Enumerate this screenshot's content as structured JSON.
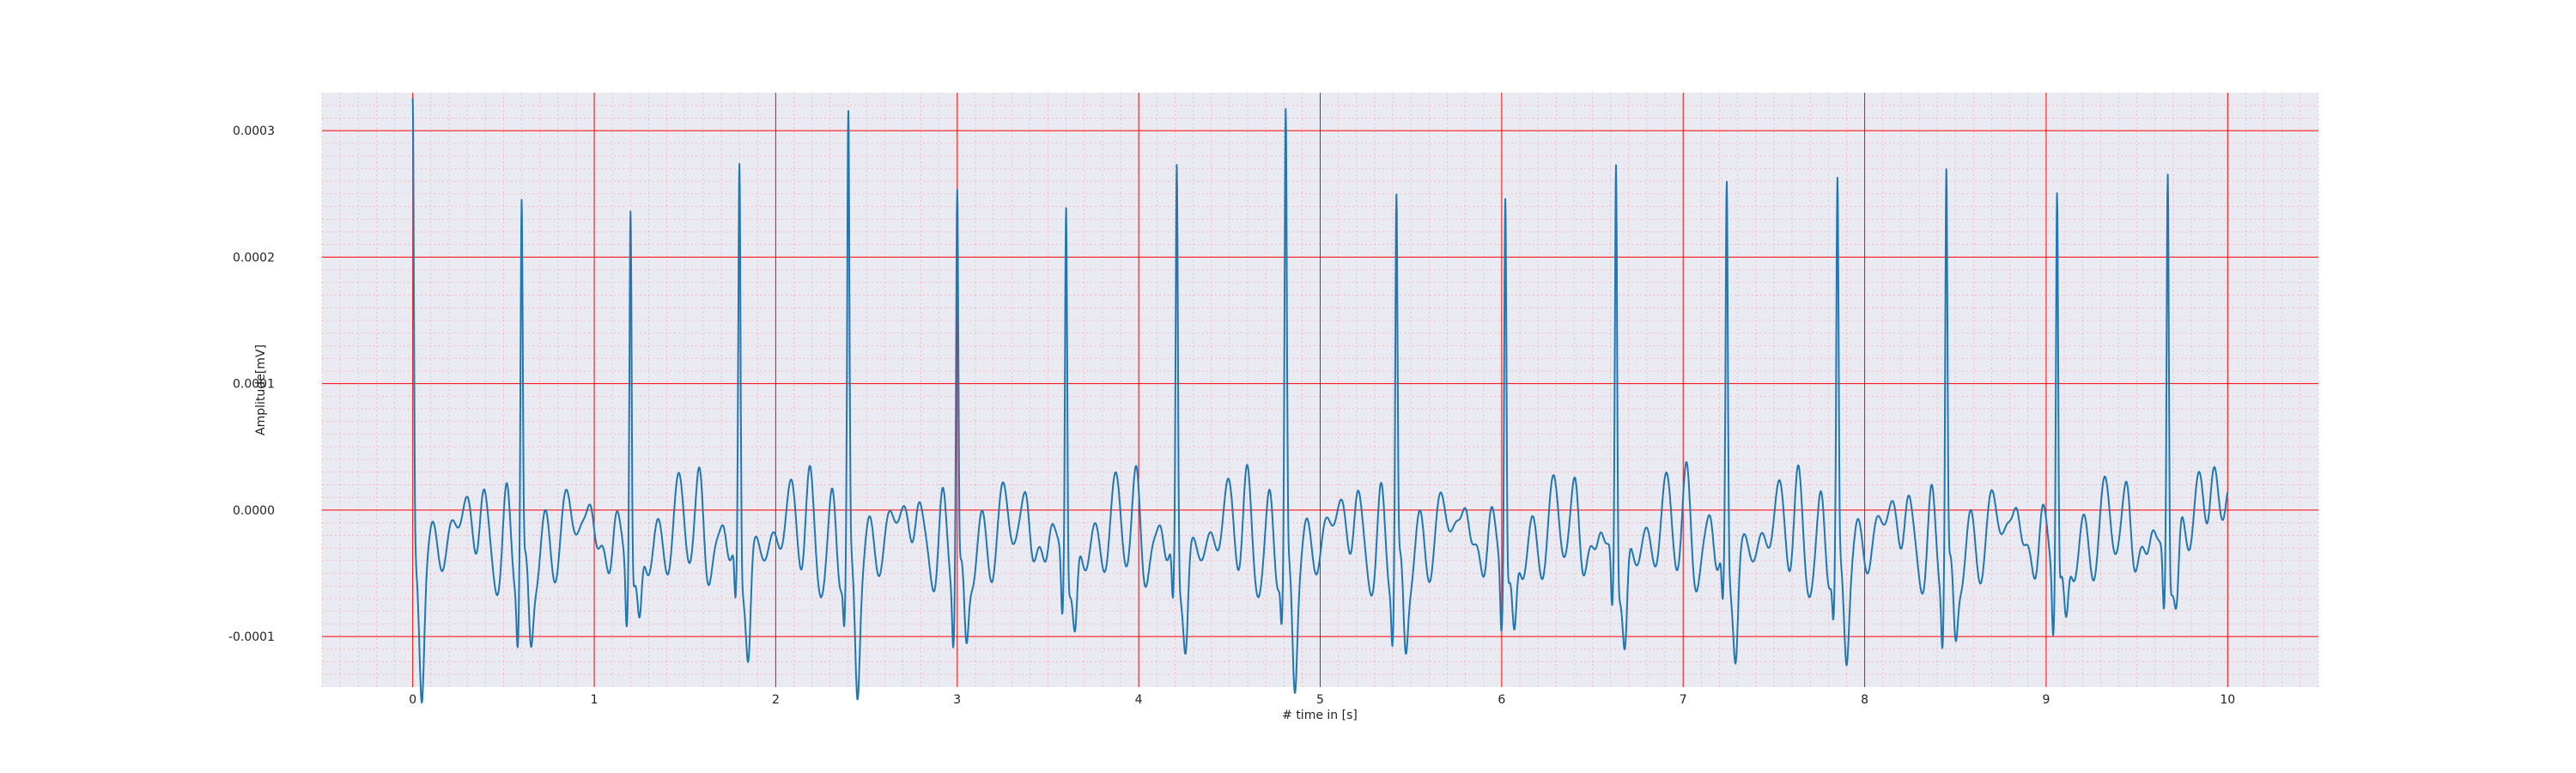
{
  "chart_data": {
    "type": "line",
    "title": "",
    "xlabel": "# time in [s]",
    "ylabel": "Amplitude[mV]",
    "xlim": [
      -0.5,
      10.5
    ],
    "ylim": [
      -0.00014,
      0.00033
    ],
    "xticks": [
      0,
      1,
      2,
      3,
      4,
      5,
      6,
      7,
      8,
      9,
      10
    ],
    "xtick_labels": [
      "0",
      "1",
      "2",
      "3",
      "4",
      "5",
      "6",
      "7",
      "8",
      "9",
      "10"
    ],
    "yticks": [
      -0.0001,
      0.0,
      0.0001,
      0.0002,
      0.0003
    ],
    "ytick_labels": [
      "-0.0001",
      "0.0000",
      "0.0001",
      "0.0002",
      "0.0003"
    ],
    "grid": true,
    "minor_grid": true,
    "legend": "none",
    "colors": {
      "background": "#eaeaf2",
      "grid_major": "#ff0000",
      "grid_minor": "#ff9999",
      "line": "#1f77b4"
    },
    "series": [
      {
        "peaks": [
          {
            "t": 0.0,
            "amp": 0.000308
          },
          {
            "t": 0.6,
            "amp": 0.000247
          },
          {
            "t": 1.2,
            "amp": 0.000258
          },
          {
            "t": 1.8,
            "amp": 0.000271
          },
          {
            "t": 2.4,
            "amp": 0.000299
          },
          {
            "t": 3.0,
            "amp": 0.000265
          },
          {
            "t": 3.6,
            "amp": 0.000257
          },
          {
            "t": 4.21,
            "amp": 0.000272
          },
          {
            "t": 4.81,
            "amp": 0.0003
          },
          {
            "t": 5.42,
            "amp": 0.000248
          },
          {
            "t": 6.02,
            "amp": 0.000268
          },
          {
            "t": 6.63,
            "amp": 0.000285
          },
          {
            "t": 7.24,
            "amp": 0.000251
          },
          {
            "t": 7.85,
            "amp": 0.000245
          },
          {
            "t": 8.45,
            "amp": 0.000276
          },
          {
            "t": 9.06,
            "amp": 0.000272
          },
          {
            "t": 9.67,
            "amp": 0.00028
          }
        ],
        "troughs": [
          {
            "t": 0.05,
            "amp": -0.000118
          },
          {
            "t": 0.65,
            "amp": -9.5e-05
          },
          {
            "t": 1.25,
            "amp": -9e-05
          },
          {
            "t": 1.85,
            "amp": -9.7e-05
          },
          {
            "t": 2.45,
            "amp": -0.000118
          },
          {
            "t": 3.05,
            "amp": -0.000102
          },
          {
            "t": 3.65,
            "amp": -9.5e-05
          },
          {
            "t": 4.26,
            "amp": -9.2e-05
          },
          {
            "t": 4.86,
            "amp": -0.000112
          },
          {
            "t": 5.47,
            "amp": -9.7e-05
          },
          {
            "t": 6.07,
            "amp": -0.0001
          },
          {
            "t": 6.68,
            "amp": -0.000102
          },
          {
            "t": 7.29,
            "amp": -9.3e-05
          },
          {
            "t": 7.9,
            "amp": -8.9e-05
          },
          {
            "t": 8.5,
            "amp": -9.5e-05
          },
          {
            "t": 9.11,
            "amp": -9e-05
          },
          {
            "t": 9.72,
            "amp": -8.5e-05
          }
        ],
        "end": {
          "t": 10.0,
          "amp": 2.4e-05
        }
      }
    ]
  }
}
